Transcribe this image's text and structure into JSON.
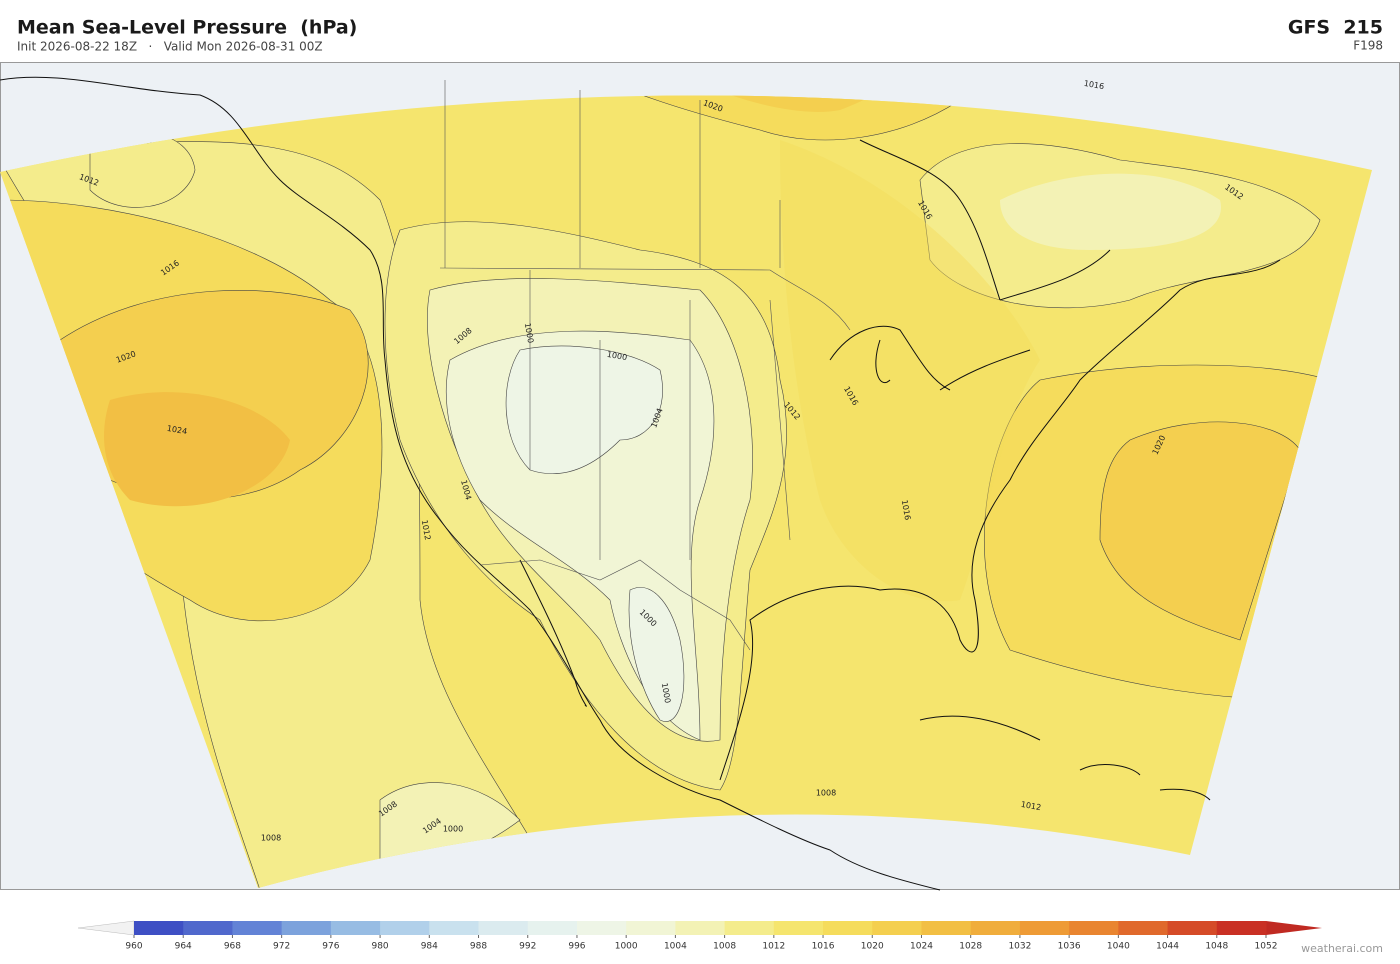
{
  "header": {
    "title": "Mean Sea-Level Pressure  (hPa)",
    "subtitle": "Init 2026-08-22 18Z   ·   Valid Mon 2026-08-31 00Z",
    "model": "GFS  215",
    "forecast_hour": "F198"
  },
  "contour_labels": [
    "1012",
    "1016",
    "1020",
    "1024",
    "1012",
    "1004",
    "1008",
    "1000",
    "1000",
    "1004",
    "1012",
    "1016",
    "1016",
    "1000",
    "1000",
    "1020",
    "1016",
    "1016",
    "1012",
    "1020",
    "1008",
    "1004",
    "1000",
    "1008",
    "1008",
    "1012"
  ],
  "colorbar": {
    "ticks": [
      960,
      964,
      968,
      972,
      976,
      980,
      984,
      988,
      992,
      996,
      1000,
      1004,
      1008,
      1012,
      1016,
      1020,
      1024,
      1028,
      1032,
      1036,
      1040,
      1044,
      1048,
      1052
    ],
    "colors": [
      "#3e4fc4",
      "#5068cc",
      "#6383d6",
      "#7ca2dc",
      "#97bce3",
      "#b1d0ea",
      "#c9e1ee",
      "#dbebef",
      "#e6f2ee",
      "#eef5e6",
      "#f1f5d5",
      "#f3f2b5",
      "#f4ec8c",
      "#f5e56e",
      "#f5dc5c",
      "#f4cf4f",
      "#f2bf44",
      "#f0ad3c",
      "#ee9b36",
      "#e98530",
      "#e0692c",
      "#d54b28",
      "#c93024"
    ],
    "under_color": "#f2f2f2",
    "over_color": "#c02a22"
  },
  "credit": "weatherai.com"
}
